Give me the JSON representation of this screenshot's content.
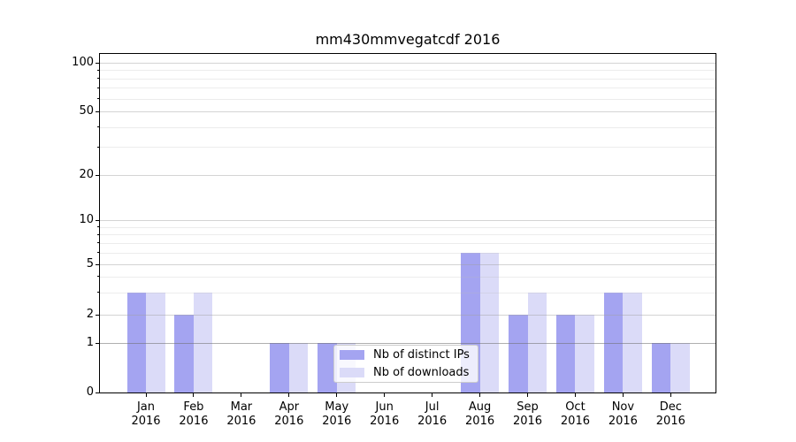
{
  "chart_data": {
    "type": "bar",
    "title": "mm430mmvegatcdf 2016",
    "categories": [
      "Jan",
      "Feb",
      "Mar",
      "Apr",
      "May",
      "Jun",
      "Jul",
      "Aug",
      "Sep",
      "Oct",
      "Nov",
      "Dec"
    ],
    "year": "2016",
    "series": [
      {
        "name": "Nb of distinct IPs",
        "color": "#a4a4f1",
        "values": [
          3,
          2,
          0,
          1,
          1,
          0,
          0,
          6,
          2,
          2,
          3,
          1
        ]
      },
      {
        "name": "Nb of downloads",
        "color": "#dbdbf8",
        "values": [
          3,
          3,
          0,
          1,
          1,
          0,
          0,
          6,
          3,
          2,
          3,
          1
        ]
      }
    ],
    "y_axis": {
      "scale": "log",
      "major_ticks": [
        0,
        1,
        2,
        5,
        10,
        20,
        50,
        100
      ],
      "minor_ticks": [
        3,
        4,
        6,
        7,
        8,
        9,
        30,
        40,
        60,
        70,
        80,
        90
      ],
      "ylim": [
        0,
        120
      ]
    },
    "legend_position": "lower center",
    "grid": true
  },
  "colors": {
    "spine": "#000000",
    "legend_border": "#cccccc",
    "background": "#ffffff"
  }
}
